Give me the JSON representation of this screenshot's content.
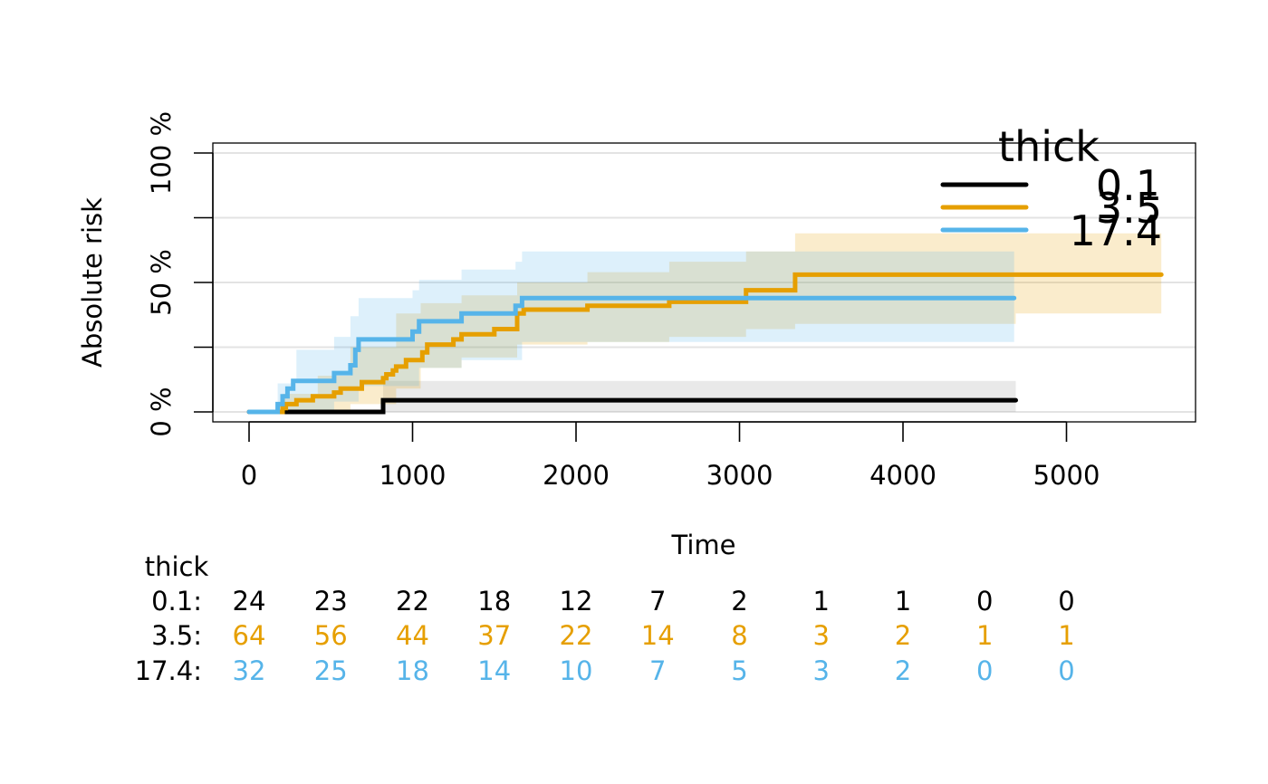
{
  "chart_data": {
    "type": "line",
    "subtype": "step",
    "xlabel": "Time",
    "ylabel": "Absolute risk",
    "xlim": [
      0,
      5600
    ],
    "ylim": [
      0,
      1
    ],
    "x_ticks": [
      0,
      1000,
      2000,
      3000,
      4000,
      5000
    ],
    "y_ticks": [
      0,
      0.25,
      0.5,
      0.75,
      1
    ],
    "y_tick_labels": [
      "0 %",
      "",
      "50 %",
      "",
      "100 %"
    ],
    "grid": true,
    "legend": {
      "title": "thick",
      "position": "top-right",
      "entries": [
        "0.1",
        "3.5",
        "17.4"
      ]
    },
    "colors": {
      "0.1": "#000000",
      "3.5": "#E69F00",
      "17.4": "#56B4E9"
    },
    "series": [
      {
        "name": "0.1",
        "color": "#000000",
        "band_color": "#999999",
        "steps": [
          [
            0,
            0
          ],
          [
            820,
            0.045
          ],
          [
            4690,
            0.045
          ]
        ],
        "lower": [
          [
            820,
            0
          ],
          [
            4690,
            0
          ]
        ],
        "upper": [
          [
            820,
            0.12
          ],
          [
            4690,
            0.12
          ]
        ]
      },
      {
        "name": "3.5",
        "color": "#E69F00",
        "band_color": "#E69F00",
        "steps": [
          [
            0,
            0
          ],
          [
            205,
            0.015
          ],
          [
            225,
            0.03
          ],
          [
            290,
            0.045
          ],
          [
            390,
            0.06
          ],
          [
            420,
            0.06
          ],
          [
            520,
            0.075
          ],
          [
            560,
            0.09
          ],
          [
            620,
            0.09
          ],
          [
            690,
            0.115
          ],
          [
            820,
            0.13
          ],
          [
            840,
            0.145
          ],
          [
            880,
            0.16
          ],
          [
            900,
            0.175
          ],
          [
            960,
            0.2
          ],
          [
            1060,
            0.23
          ],
          [
            1090,
            0.26
          ],
          [
            1250,
            0.28
          ],
          [
            1300,
            0.3
          ],
          [
            1360,
            0.3
          ],
          [
            1500,
            0.32
          ],
          [
            1640,
            0.38
          ],
          [
            1680,
            0.395
          ],
          [
            2070,
            0.41
          ],
          [
            2570,
            0.425
          ],
          [
            3040,
            0.47
          ],
          [
            3340,
            0.53
          ],
          [
            5580,
            0.53
          ]
        ],
        "lower": [
          [
            205,
            0
          ],
          [
            620,
            0.03
          ],
          [
            900,
            0.09
          ],
          [
            1050,
            0.17
          ],
          [
            1300,
            0.21
          ],
          [
            1640,
            0.26
          ],
          [
            2070,
            0.27
          ],
          [
            2570,
            0.29
          ],
          [
            3040,
            0.32
          ],
          [
            3340,
            0.34
          ],
          [
            4690,
            0.38
          ],
          [
            5580,
            0.38
          ]
        ],
        "upper": [
          [
            205,
            0.07
          ],
          [
            420,
            0.14
          ],
          [
            620,
            0.25
          ],
          [
            900,
            0.38
          ],
          [
            1050,
            0.42
          ],
          [
            1300,
            0.45
          ],
          [
            1640,
            0.5
          ],
          [
            2070,
            0.54
          ],
          [
            2570,
            0.58
          ],
          [
            3040,
            0.62
          ],
          [
            3340,
            0.69
          ],
          [
            5580,
            0.69
          ]
        ]
      },
      {
        "name": "17.4",
        "color": "#56B4E9",
        "band_color": "#56B4E9",
        "steps": [
          [
            0,
            0
          ],
          [
            175,
            0.03
          ],
          [
            205,
            0.06
          ],
          [
            235,
            0.09
          ],
          [
            270,
            0.12
          ],
          [
            520,
            0.15
          ],
          [
            620,
            0.18
          ],
          [
            650,
            0.24
          ],
          [
            670,
            0.28
          ],
          [
            1000,
            0.31
          ],
          [
            1040,
            0.35
          ],
          [
            1300,
            0.38
          ],
          [
            1630,
            0.41
          ],
          [
            1670,
            0.44
          ],
          [
            4680,
            0.44
          ]
        ],
        "lower": [
          [
            175,
            0
          ],
          [
            520,
            0.04
          ],
          [
            670,
            0.1
          ],
          [
            1040,
            0.17
          ],
          [
            1300,
            0.2
          ],
          [
            1670,
            0.27
          ],
          [
            4680,
            0.27
          ]
        ],
        "upper": [
          [
            175,
            0.11
          ],
          [
            290,
            0.24
          ],
          [
            520,
            0.29
          ],
          [
            620,
            0.37
          ],
          [
            670,
            0.44
          ],
          [
            1000,
            0.47
          ],
          [
            1040,
            0.51
          ],
          [
            1300,
            0.55
          ],
          [
            1630,
            0.58
          ],
          [
            1670,
            0.62
          ],
          [
            4680,
            0.62
          ]
        ]
      }
    ],
    "risk_table": {
      "title": "thick",
      "times": [
        0,
        500,
        1000,
        1500,
        2000,
        2500,
        3000,
        3500,
        4000,
        4500,
        5000
      ],
      "rows": [
        {
          "label": "0.1:",
          "color": "#000000",
          "values": [
            24,
            23,
            22,
            18,
            12,
            7,
            2,
            1,
            1,
            0,
            0
          ]
        },
        {
          "label": "3.5:",
          "color": "#E69F00",
          "values": [
            64,
            56,
            44,
            37,
            22,
            14,
            8,
            3,
            2,
            1,
            1
          ]
        },
        {
          "label": "17.4:",
          "color": "#56B4E9",
          "values": [
            32,
            25,
            18,
            14,
            10,
            7,
            5,
            3,
            2,
            0,
            0
          ]
        }
      ]
    }
  }
}
